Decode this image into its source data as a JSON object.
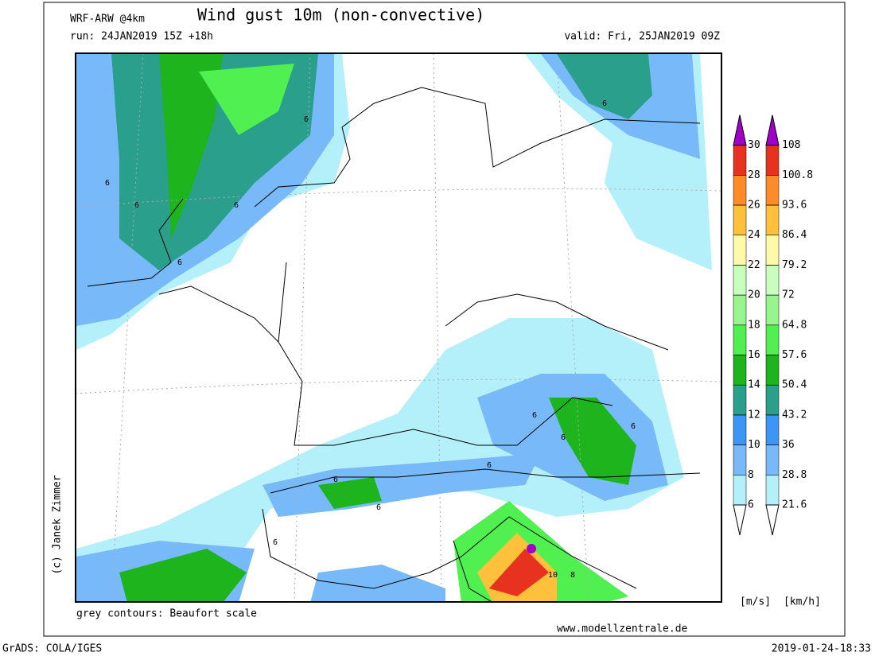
{
  "header": {
    "model": "WRF-ARW @4km",
    "title": "Wind gust 10m (non-convective)",
    "run": "run: 24JAN2019 15Z +18h",
    "valid": "valid: Fri, 25JAN2019 09Z"
  },
  "colorbar": {
    "colors": [
      "#b4f0fa",
      "#78b9fa",
      "#3c96f5",
      "#2aa08c",
      "#1eb41e",
      "#50f050",
      "#96f58c",
      "#c8ffbe",
      "#fffaaa",
      "#ffc03c",
      "#ff8a28",
      "#e6321e",
      "#a50000"
    ],
    "top_color": "#a000c8",
    "ms_labels": [
      6,
      8,
      10,
      12,
      14,
      16,
      18,
      20,
      22,
      24,
      26,
      28,
      30
    ],
    "kmh_labels": [
      21.6,
      28.8,
      36,
      43.2,
      50.4,
      57.6,
      64.8,
      72,
      79.2,
      86.4,
      93.6,
      100.8,
      108
    ],
    "ms_unit": "[m/s]",
    "kmh_unit": "[km/h]"
  },
  "map": {
    "contour_labels": [
      "6",
      "6",
      "6",
      "6",
      "6",
      "6",
      "6",
      "6",
      "6",
      "6",
      "6",
      "6",
      "6",
      "10",
      "8"
    ]
  },
  "footer": {
    "copyright": "(c) Janek Zimmer",
    "note": "grey contours: Beaufort scale",
    "site": "www.modellzentrale.de",
    "software": "GrADS: COLA/IGES",
    "timestamp": "2019-01-24-18:33"
  }
}
